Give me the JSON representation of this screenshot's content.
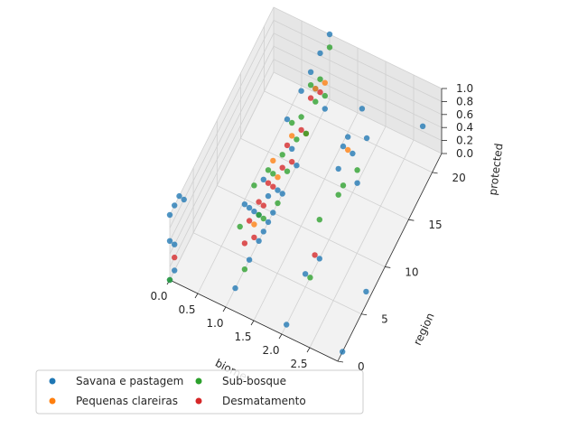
{
  "chart_data": {
    "type": "scatter",
    "projection": "3d",
    "title": "",
    "xlabel": "biome",
    "ylabel": "region",
    "zlabel": "protected",
    "xlim": [
      0,
      3
    ],
    "ylim": [
      0,
      22
    ],
    "zlim": [
      0,
      1
    ],
    "x_ticks": [
      "0.0",
      "0.5",
      "1.0",
      "1.5",
      "2.0",
      "2.5"
    ],
    "y_ticks": [
      "0",
      "5",
      "10",
      "15",
      "20"
    ],
    "z_ticks": [
      "0.0",
      "0.2",
      "0.4",
      "0.6",
      "0.8",
      "1.0"
    ],
    "grid": true,
    "legend": {
      "placement": "lower-left",
      "columns": 2
    },
    "series": [
      {
        "name": "Savana e pastagem",
        "color": "#1f77b4",
        "points": [
          [
            0,
            0,
            1
          ],
          [
            0,
            0,
            0.6
          ],
          [
            0,
            0,
            0
          ],
          [
            0,
            1,
            1
          ],
          [
            0,
            1,
            0.4
          ],
          [
            0,
            1,
            0
          ],
          [
            0,
            2,
            1
          ],
          [
            0,
            3,
            0.8
          ],
          [
            1,
            2,
            0
          ],
          [
            1,
            4,
            1
          ],
          [
            1,
            5,
            0.8
          ],
          [
            1,
            5,
            0
          ],
          [
            1,
            6,
            0.6
          ],
          [
            1,
            7,
            0
          ],
          [
            1,
            7,
            0.4
          ],
          [
            1,
            8,
            0
          ],
          [
            1,
            8,
            0.8
          ],
          [
            1,
            9,
            0
          ],
          [
            1,
            9,
            0.4
          ],
          [
            1,
            10,
            0
          ],
          [
            1,
            11,
            0.2
          ],
          [
            1,
            12,
            0
          ],
          [
            1,
            13,
            1
          ],
          [
            1,
            14,
            0.4
          ],
          [
            1,
            15,
            0
          ],
          [
            1,
            16,
            1
          ],
          [
            1,
            17,
            0.2
          ],
          [
            1,
            18,
            1
          ],
          [
            1,
            19,
            0.6
          ],
          [
            1,
            20,
            1
          ],
          [
            1,
            21,
            0
          ],
          [
            1,
            22,
            1
          ],
          [
            2,
            1,
            0
          ],
          [
            2,
            5,
            0.2
          ],
          [
            2,
            8,
            0
          ],
          [
            2,
            12,
            0.8
          ],
          [
            2,
            13,
            1
          ],
          [
            2,
            14,
            1
          ],
          [
            2,
            15,
            0.6
          ],
          [
            2,
            16,
            0
          ],
          [
            2,
            17,
            1
          ],
          [
            2,
            18,
            0.4
          ],
          [
            3,
            1,
            0
          ],
          [
            3,
            6,
            0.2
          ],
          [
            3,
            18,
            1
          ]
        ]
      },
      {
        "name": "Pequenas clareiras",
        "color": "#ff7f0e",
        "points": [
          [
            1,
            6,
            0.4
          ],
          [
            1,
            10,
            0.8
          ],
          [
            1,
            11,
            0.4
          ],
          [
            1,
            14,
            0.6
          ],
          [
            1,
            17,
            0.2
          ],
          [
            1,
            19,
            0.6
          ],
          [
            1,
            21,
            0.4
          ],
          [
            2,
            14,
            0.8
          ]
        ]
      },
      {
        "name": "Sub-bosque",
        "color": "#2ca02c",
        "points": [
          [
            0,
            0,
            0
          ],
          [
            1,
            3,
            0.8
          ],
          [
            1,
            4,
            0
          ],
          [
            1,
            6,
            1
          ],
          [
            1,
            7,
            0.4
          ],
          [
            1,
            8,
            0.2
          ],
          [
            1,
            9,
            0.8
          ],
          [
            1,
            10,
            0.6
          ],
          [
            1,
            11,
            0
          ],
          [
            1,
            12,
            0.6
          ],
          [
            1,
            13,
            0.2
          ],
          [
            1,
            14,
            0.8
          ],
          [
            1,
            15,
            0.4
          ],
          [
            1,
            16,
            0.6
          ],
          [
            1,
            17,
            0.2
          ],
          [
            1,
            18,
            0.8
          ],
          [
            1,
            19,
            0.4
          ],
          [
            1,
            20,
            0.6
          ],
          [
            1,
            21,
            0.2
          ],
          [
            1,
            22,
            0.8
          ],
          [
            2,
            6,
            0
          ],
          [
            2,
            8,
            0.6
          ],
          [
            2,
            12,
            0.4
          ],
          [
            2,
            13,
            0.4
          ],
          [
            2,
            16,
            0.2
          ]
        ]
      },
      {
        "name": "Desmatamento",
        "color": "#d62728",
        "points": [
          [
            0,
            1,
            0.2
          ],
          [
            1,
            4,
            0.4
          ],
          [
            1,
            5,
            0.6
          ],
          [
            1,
            6,
            0.2
          ],
          [
            1,
            7,
            0.6
          ],
          [
            1,
            8,
            0.4
          ],
          [
            1,
            9,
            0.6
          ],
          [
            1,
            10,
            0.4
          ],
          [
            1,
            12,
            0.4
          ],
          [
            1,
            13,
            0.6
          ],
          [
            1,
            14,
            0.2
          ],
          [
            1,
            16,
            0.4
          ],
          [
            1,
            18,
            0.6
          ],
          [
            1,
            20,
            0.4
          ],
          [
            2,
            7,
            0.2
          ]
        ]
      }
    ]
  }
}
